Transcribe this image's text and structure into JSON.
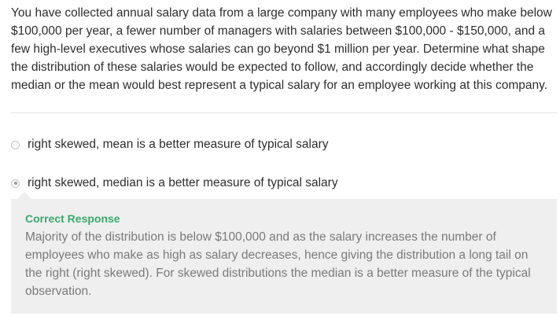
{
  "question": {
    "text": "You have collected annual salary data from a large company with many employees who make below $100,000 per year, a fewer number of managers with salaries between $100,000 - $150,000, and a few high-level executives whose salaries can go beyond $1 million per year. Determine what shape the distribution of these salaries would be expected to follow, and accordingly decide whether the median or the mean would best represent a typical salary for an employee working at this company."
  },
  "options": [
    {
      "label": "right skewed, mean is a better measure of typical salary",
      "selected": false,
      "icon": "radio-unchecked-icon"
    },
    {
      "label": "right skewed, median is a better measure of typical salary",
      "selected": true,
      "icon": "radio-checked-icon"
    }
  ],
  "feedback": {
    "title": "Correct Response",
    "title_color": "#3aa86a",
    "body": "Majority of the distribution is below $100,000 and as the salary increases the number of employees who make as high as salary decreases, hence giving the distribution a long tail on the right (right skewed). For skewed distributions the median is a better measure of the typical observation."
  }
}
